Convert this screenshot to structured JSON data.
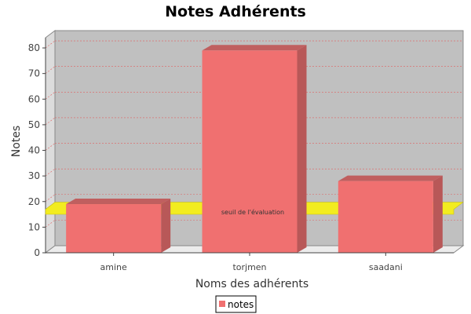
{
  "chart_data": {
    "type": "bar",
    "title": "Notes Adhérents",
    "xlabel": "Noms des adhérents",
    "ylabel": "Notes",
    "categories": [
      "amine",
      "torjmen",
      "saadani"
    ],
    "series": [
      {
        "name": "notes",
        "color": "#f07070",
        "values": [
          19,
          79,
          28
        ]
      }
    ],
    "ylim": [
      0,
      84
    ],
    "yticks": [
      0,
      10,
      20,
      30,
      40,
      50,
      60,
      70,
      80
    ],
    "grid": true,
    "marker": {
      "label": "seuil de l'évaluation",
      "value": 16,
      "color": "#f2ec20"
    },
    "legend_position": "bottom",
    "plot_background": "#c0c0c0"
  }
}
